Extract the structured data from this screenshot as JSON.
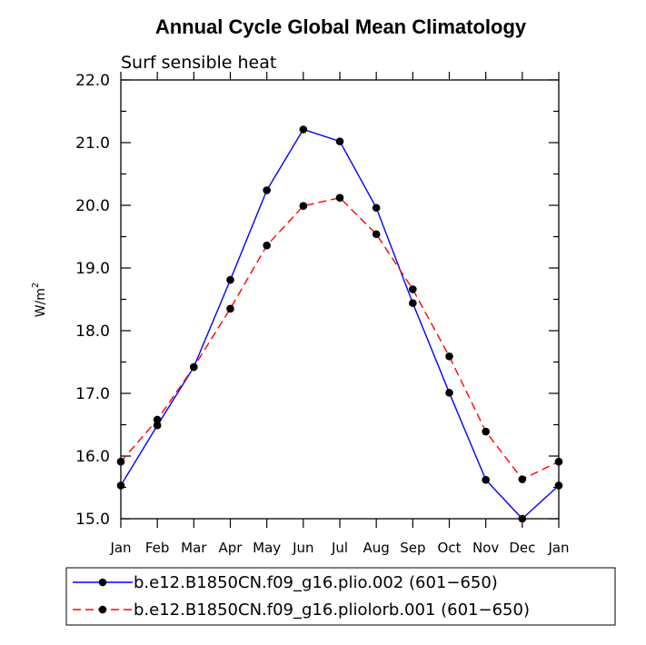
{
  "chart_data": {
    "type": "line",
    "title": "Annual Cycle Global Mean Climatology",
    "subtitle": "Surf sensible heat",
    "ylabel": "W/m",
    "ylabel_sup": "2",
    "xlabel": "",
    "categories": [
      "Jan",
      "Feb",
      "Mar",
      "Apr",
      "May",
      "Jun",
      "Jul",
      "Aug",
      "Sep",
      "Oct",
      "Nov",
      "Dec",
      "Jan"
    ],
    "ylim": [
      15.0,
      22.0
    ],
    "yticks": [
      "15.0",
      "16.0",
      "17.0",
      "18.0",
      "19.0",
      "20.0",
      "21.0",
      "22.0"
    ],
    "series": [
      {
        "name": "b.e12.B1850CN.f09_g16.plio.002 (601−650)",
        "color": "#0000ff",
        "dash": "solid",
        "values": [
          15.53,
          16.49,
          17.42,
          18.81,
          20.24,
          21.21,
          21.02,
          19.96,
          18.44,
          17.01,
          15.62,
          15.0,
          15.53
        ]
      },
      {
        "name": "b.e12.B1850CN.f09_g16.pliolorb.001 (601−650)",
        "color": "#ff0000",
        "dash": "dashed",
        "values": [
          15.91,
          16.58,
          17.42,
          18.35,
          19.36,
          19.99,
          20.12,
          19.54,
          18.66,
          17.59,
          16.39,
          15.63,
          15.91
        ]
      }
    ],
    "legend": "bottom",
    "grid": false
  }
}
